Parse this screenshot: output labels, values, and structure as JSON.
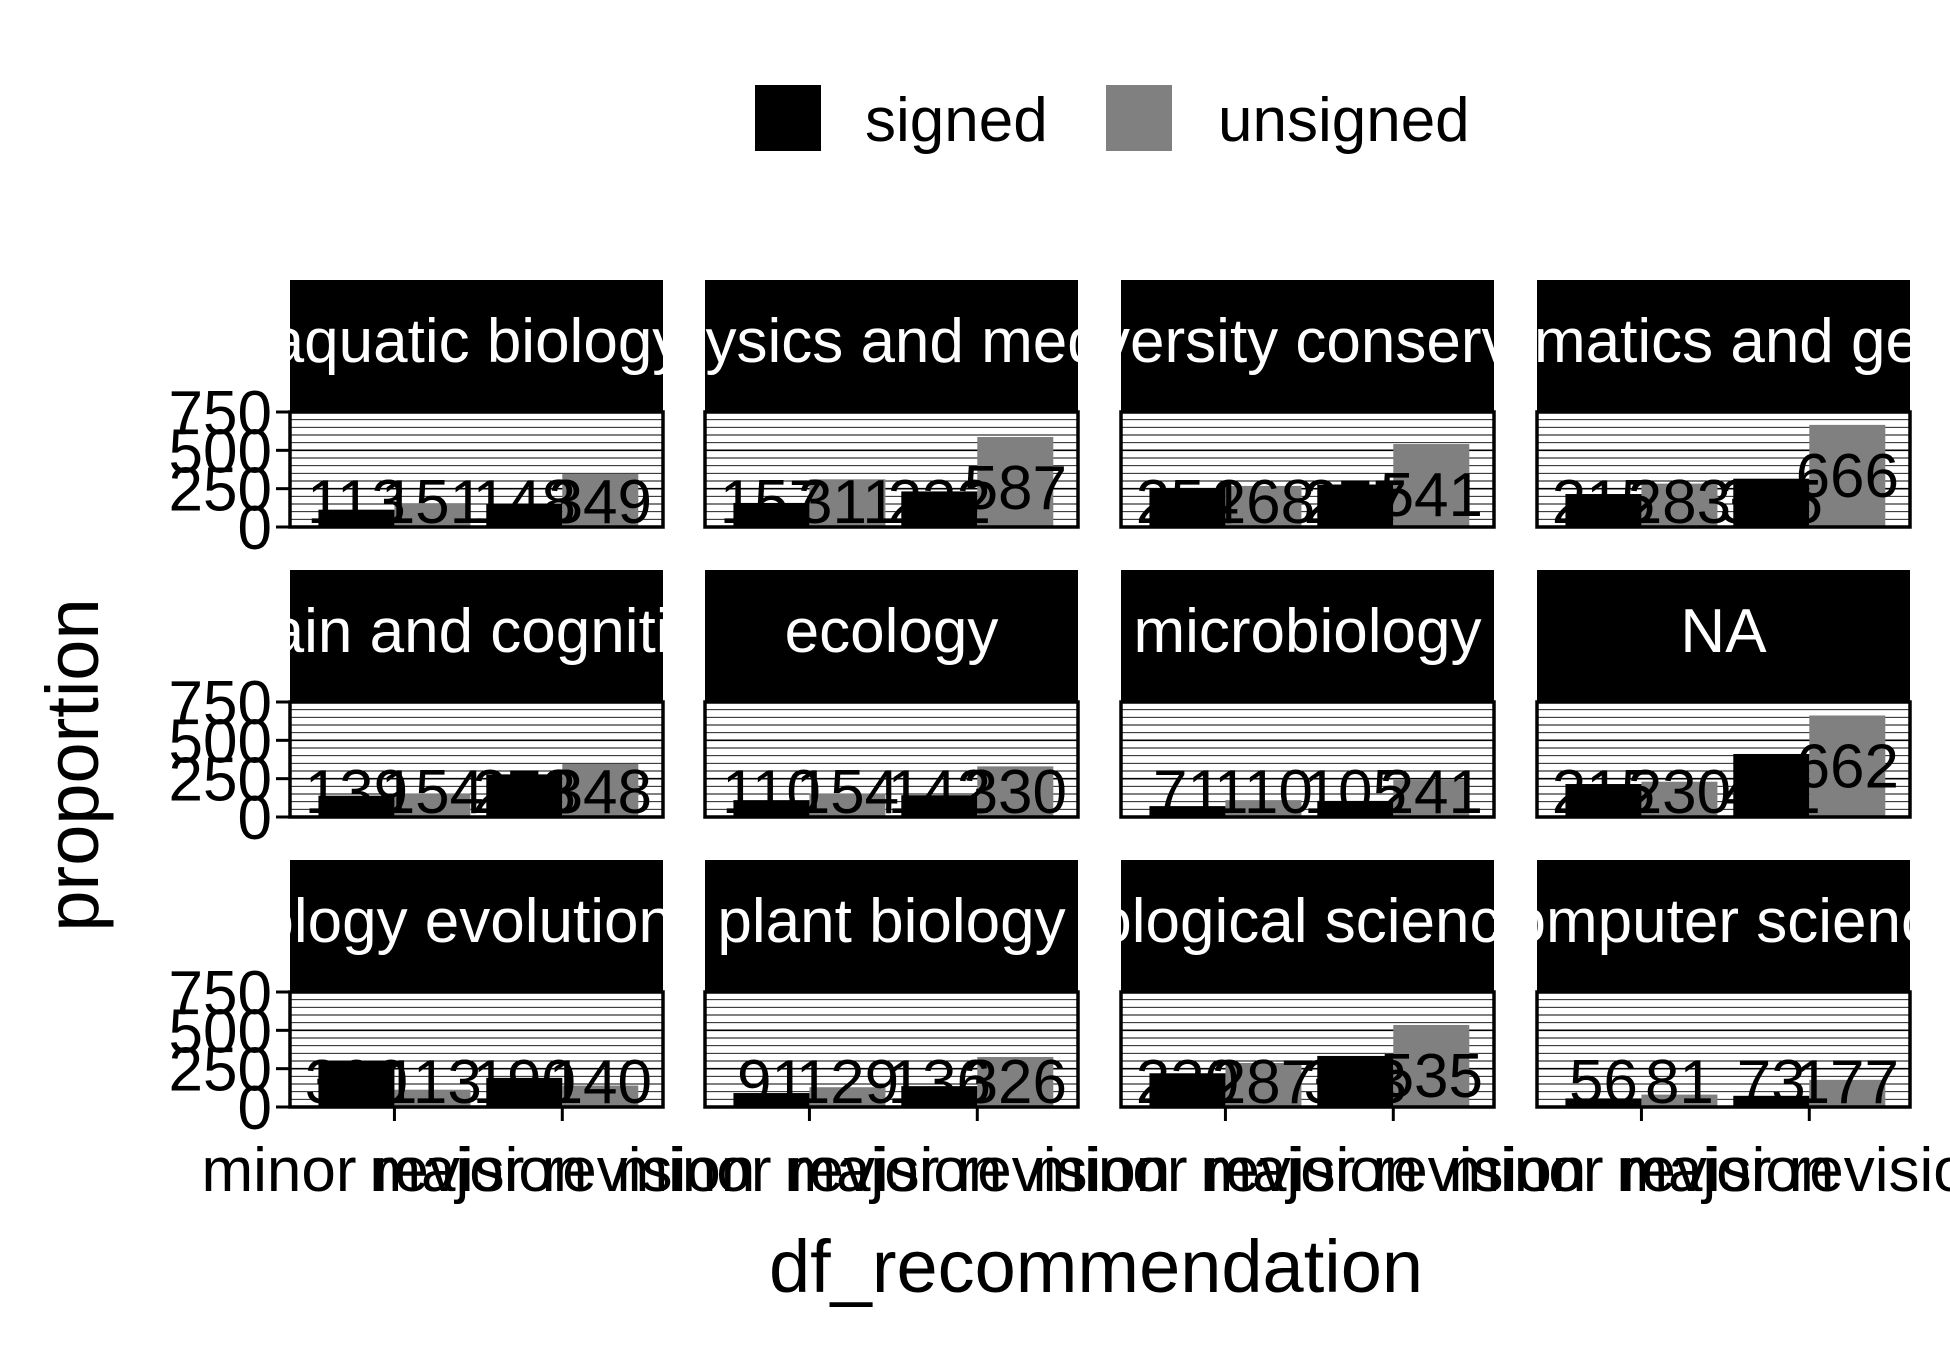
{
  "chart_data": {
    "type": "bar",
    "xlabel": "df_recommendation",
    "ylabel": "proportion",
    "categories": [
      "minor revision",
      "major revision"
    ],
    "series_names": [
      "signed",
      "unsigned"
    ],
    "colors": {
      "signed": "#000000",
      "unsigned": "#808080"
    },
    "legend_position": "top",
    "ylim": [
      0,
      750
    ],
    "yticks": [
      "0",
      "250",
      "500",
      "750"
    ],
    "grid": true,
    "panels": [
      {
        "title": "aquatic biology",
        "values": [
          [
            113,
            151
          ],
          [
            148,
            349
          ]
        ]
      },
      {
        "title": "biophysics and medicine",
        "values": [
          [
            157,
            311
          ],
          [
            232,
            587
          ]
        ]
      },
      {
        "title": "biodiversity conservation",
        "values": [
          [
            254,
            268
          ],
          [
            277,
            541
          ]
        ]
      },
      {
        "title": "bioinformatics and genomics",
        "values": [
          [
            215,
            283
          ],
          [
            315,
            666
          ]
        ]
      },
      {
        "title": "brain and cognition",
        "values": [
          [
            139,
            154
          ],
          [
            278,
            348
          ]
        ]
      },
      {
        "title": "ecology",
        "values": [
          [
            110,
            154
          ],
          [
            142,
            330
          ]
        ]
      },
      {
        "title": "microbiology",
        "values": [
          [
            71,
            110
          ],
          [
            105,
            241
          ]
        ]
      },
      {
        "title": "NA",
        "values": [
          [
            215,
            230
          ],
          [
            411,
            662
          ]
        ]
      },
      {
        "title": "zoology evolutionary",
        "values": [
          [
            300,
            113
          ],
          [
            190,
            140
          ]
        ]
      },
      {
        "title": "plant biology",
        "values": [
          [
            91,
            129
          ],
          [
            136,
            326
          ]
        ]
      },
      {
        "title": "biological sciences",
        "values": [
          [
            220,
            287
          ],
          [
            333,
            535
          ]
        ]
      },
      {
        "title": "computer science",
        "values": [
          [
            56,
            81
          ],
          [
            73,
            177
          ]
        ]
      }
    ]
  }
}
